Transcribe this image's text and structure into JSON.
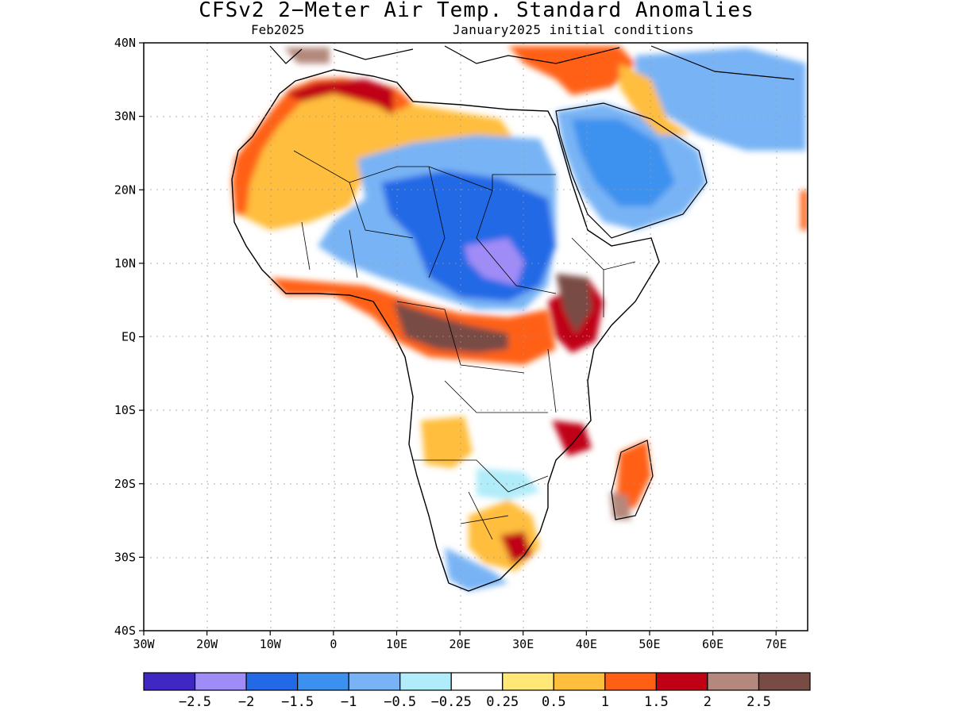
{
  "title": "CFSv2 2−Meter Air Temp. Standard Anomalies",
  "subtitle_left": "Feb2025",
  "subtitle_right": "January2025 initial conditions",
  "map": {
    "lat_labels": [
      "40N",
      "30N",
      "20N",
      "10N",
      "EQ",
      "10S",
      "20S",
      "30S",
      "40S"
    ],
    "lon_labels": [
      "30W",
      "20W",
      "10W",
      "0",
      "10E",
      "20E",
      "30E",
      "40E",
      "50E",
      "60E",
      "70E"
    ],
    "extent": {
      "lon_min": -30,
      "lon_max": 75,
      "lat_min": -40,
      "lat_max": 40
    }
  },
  "colorbar": {
    "colors": [
      "#3f27c4",
      "#a08cf7",
      "#2369e6",
      "#3c91ef",
      "#78b4f5",
      "#b0ecf9",
      "#ffffff",
      "#ffe878",
      "#ffbe3c",
      "#ff6014",
      "#c00014",
      "#b4887c",
      "#784c44"
    ],
    "labels": [
      "−2.5",
      "−2",
      "−1.5",
      "−1",
      "−0.5",
      "−0.25",
      "0.25",
      "0.5",
      "1",
      "1.5",
      "2",
      "2.5"
    ]
  }
}
